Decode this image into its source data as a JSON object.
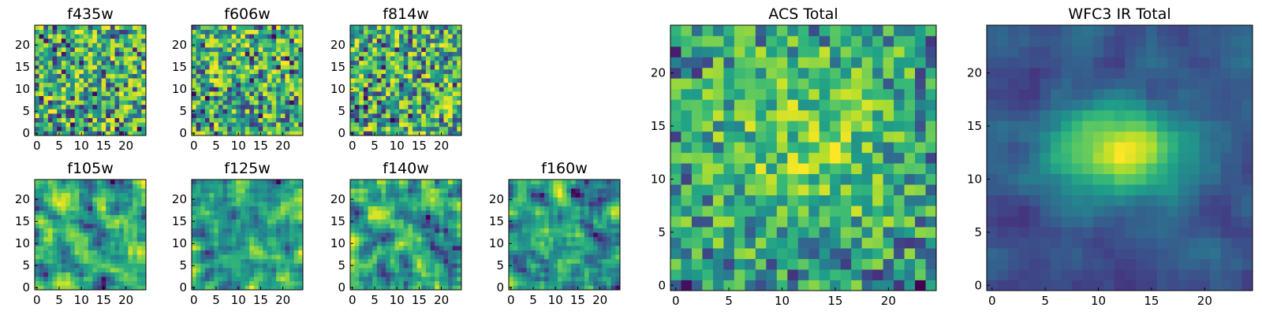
{
  "figure": {
    "panels": [
      {
        "id": "f435w",
        "title": "f435w",
        "xticks": [
          "0",
          "5",
          "10",
          "15",
          "20"
        ],
        "yticks": [
          "0",
          "5",
          "10",
          "15",
          "20"
        ]
      },
      {
        "id": "f606w",
        "title": "f606w",
        "xticks": [
          "0",
          "5",
          "10",
          "15",
          "20"
        ],
        "yticks": [
          "0",
          "5",
          "10",
          "15",
          "20"
        ]
      },
      {
        "id": "f814w",
        "title": "f814w",
        "xticks": [
          "0",
          "5",
          "10",
          "15",
          "20"
        ],
        "yticks": [
          "0",
          "5",
          "10",
          "15",
          "20"
        ]
      },
      {
        "id": "f105w",
        "title": "f105w",
        "xticks": [
          "0",
          "5",
          "10",
          "15",
          "20"
        ],
        "yticks": [
          "0",
          "5",
          "10",
          "15",
          "20"
        ]
      },
      {
        "id": "f125w",
        "title": "f125w",
        "xticks": [
          "0",
          "5",
          "10",
          "15",
          "20"
        ],
        "yticks": [
          "0",
          "5",
          "10",
          "15",
          "20"
        ]
      },
      {
        "id": "f140w",
        "title": "f140w",
        "xticks": [
          "0",
          "5",
          "10",
          "15",
          "20"
        ],
        "yticks": [
          "0",
          "5",
          "10",
          "15",
          "20"
        ]
      },
      {
        "id": "f160w",
        "title": "f160w",
        "xticks": [
          "0",
          "5",
          "10",
          "15",
          "20"
        ],
        "yticks": [
          "0",
          "5",
          "10",
          "15",
          "20"
        ]
      },
      {
        "id": "acs_total",
        "title": "ACS Total",
        "xticks": [
          "0",
          "5",
          "10",
          "15",
          "20"
        ],
        "yticks": [
          "0",
          "5",
          "10",
          "15",
          "20"
        ]
      },
      {
        "id": "wfc3_ir_total",
        "title": "WFC3 IR Total",
        "xticks": [
          "0",
          "5",
          "10",
          "15",
          "20"
        ],
        "yticks": [
          "0",
          "5",
          "10",
          "15",
          "20"
        ]
      }
    ]
  },
  "chart_data": [
    {
      "type": "heatmap",
      "title": "f435w",
      "colormap": "viridis",
      "grid_size": [
        25,
        25
      ],
      "xlim": [
        0,
        24
      ],
      "ylim": [
        0,
        24
      ],
      "pattern": "uniform noise",
      "grid": false
    },
    {
      "type": "heatmap",
      "title": "f606w",
      "colormap": "viridis",
      "grid_size": [
        25,
        25
      ],
      "xlim": [
        0,
        24
      ],
      "ylim": [
        0,
        24
      ],
      "pattern": "uniform noise",
      "grid": false
    },
    {
      "type": "heatmap",
      "title": "f814w",
      "colormap": "viridis",
      "grid_size": [
        25,
        25
      ],
      "xlim": [
        0,
        24
      ],
      "ylim": [
        0,
        24
      ],
      "pattern": "uniform noise",
      "grid": false
    },
    {
      "type": "heatmap",
      "title": "f105w",
      "colormap": "viridis",
      "grid_size": [
        25,
        25
      ],
      "xlim": [
        0,
        24
      ],
      "ylim": [
        0,
        24
      ],
      "pattern": "correlated noise",
      "grid": false
    },
    {
      "type": "heatmap",
      "title": "f125w",
      "colormap": "viridis",
      "grid_size": [
        25,
        25
      ],
      "xlim": [
        0,
        24
      ],
      "ylim": [
        0,
        24
      ],
      "pattern": "correlated noise",
      "grid": false
    },
    {
      "type": "heatmap",
      "title": "f140w",
      "colormap": "viridis",
      "grid_size": [
        25,
        25
      ],
      "xlim": [
        0,
        24
      ],
      "ylim": [
        0,
        24
      ],
      "pattern": "correlated noise",
      "grid": false
    },
    {
      "type": "heatmap",
      "title": "f160w",
      "colormap": "viridis",
      "grid_size": [
        25,
        25
      ],
      "xlim": [
        0,
        24
      ],
      "ylim": [
        0,
        24
      ],
      "pattern": "correlated noise",
      "grid": false
    },
    {
      "type": "heatmap",
      "title": "ACS Total",
      "colormap": "viridis",
      "grid_size": [
        25,
        25
      ],
      "xlim": [
        0,
        24
      ],
      "ylim": [
        0,
        24
      ],
      "pattern": "noisy with faint central excess",
      "grid": false
    },
    {
      "type": "heatmap",
      "title": "WFC3 IR Total",
      "colormap": "viridis",
      "grid_size": [
        25,
        25
      ],
      "xlim": [
        0,
        24
      ],
      "ylim": [
        0,
        24
      ],
      "pattern": "smooth with bright central source near (12, 12)",
      "grid": false
    }
  ]
}
